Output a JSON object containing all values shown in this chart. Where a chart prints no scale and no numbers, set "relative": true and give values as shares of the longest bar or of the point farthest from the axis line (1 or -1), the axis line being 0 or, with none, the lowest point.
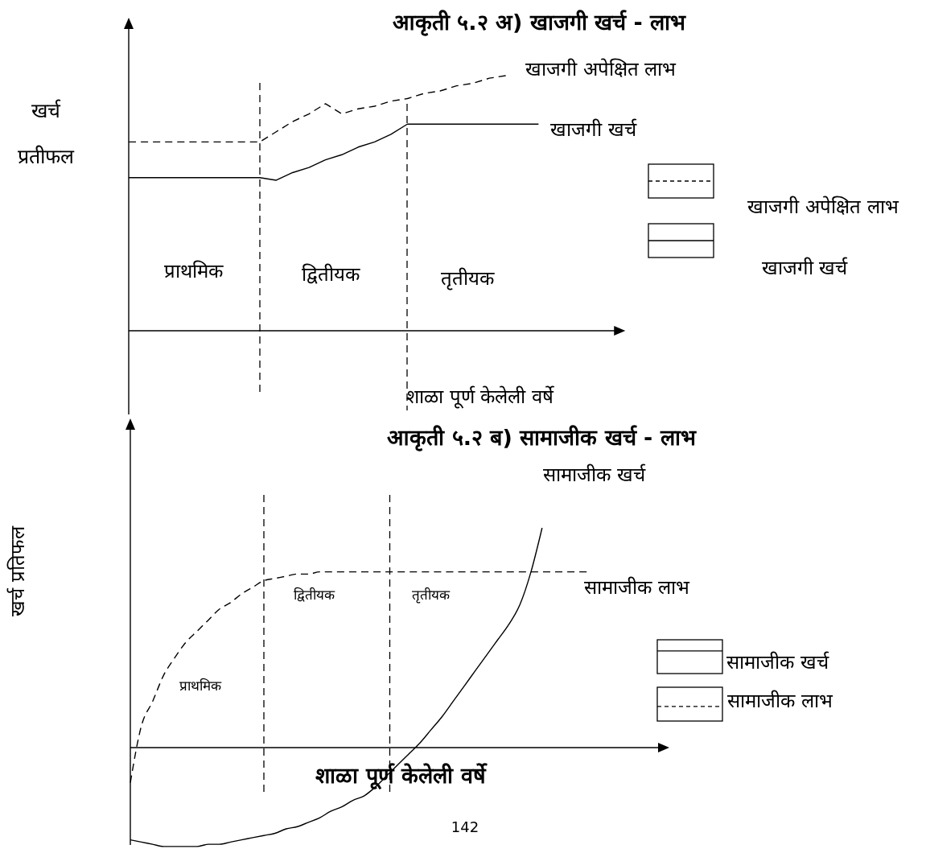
{
  "chart_data": [
    {
      "type": "line",
      "title": "आकृती ५.२ अ) खाजगी खर्च - लाभ",
      "xlabel": "शाळा पूर्ण केलेली वर्षे",
      "ylabel": "खर्च प्रतीफल",
      "relative": true,
      "legend": "right",
      "categories": [
        null,
        null,
        null,
        null,
        null,
        null,
        null,
        null,
        null,
        null,
        null,
        null,
        null,
        null,
        null,
        null,
        null,
        null,
        null,
        null,
        null,
        null,
        null,
        null,
        null,
        null,
        null,
        null,
        null,
        null,
        null
      ],
      "series": [
        {
          "name": "खाजगी अपेक्षित लाभ",
          "color": "#000000",
          "line_style": "dashed",
          "values": [
            0.74,
            0.74,
            0.74,
            0.74,
            0.74,
            0.74,
            0.74,
            0.74,
            0.74,
            0.78,
            0.82,
            0.85,
            0.89,
            0.85,
            0.87,
            0.88,
            0.9,
            0.91,
            0.93,
            0.94,
            0.96,
            0.97,
            0.99,
            1.0,
            null,
            null,
            null,
            null,
            null,
            null,
            null
          ]
        },
        {
          "name": "खाजगी खर्च",
          "color": "#000000",
          "line_style": "solid",
          "values": [
            0.6,
            0.6,
            0.6,
            0.6,
            0.6,
            0.6,
            0.6,
            0.6,
            0.6,
            0.59,
            0.62,
            0.64,
            0.67,
            0.69,
            0.72,
            0.74,
            0.77,
            0.81,
            0.81,
            0.81,
            0.81,
            0.81,
            0.81,
            0.81,
            0.81,
            0.81,
            null,
            null,
            null,
            null,
            null
          ]
        }
      ],
      "annotations": [
        "प्राथमिक",
        "द्वितीयक",
        "तृतीयक"
      ]
    },
    {
      "type": "line",
      "title": "आकृती ५.२ ब) सामाजीक खर्च - लाभ",
      "xlabel": "शाळा पूर्ण केलेली वर्षे",
      "ylabel": "खर्च प्रतिफल",
      "relative": true,
      "legend": "right",
      "categories": [
        null,
        null,
        null,
        null,
        null,
        null,
        null,
        null,
        null,
        null,
        null,
        null,
        null,
        null,
        null,
        null,
        null,
        null,
        null,
        null,
        null,
        null,
        null,
        null,
        null,
        null,
        null,
        null,
        null,
        null,
        null,
        null,
        null,
        null,
        null,
        null,
        null,
        null,
        null,
        null,
        null,
        null,
        null,
        null,
        null,
        null,
        null,
        null,
        null
      ],
      "series": [
        {
          "name": "सामाजीक खर्च",
          "color": "#000000",
          "line_style": "solid",
          "values": [
            -0.42,
            -0.43,
            -0.44,
            -0.45,
            -0.45,
            -0.45,
            -0.45,
            -0.44,
            -0.44,
            -0.43,
            -0.42,
            -0.41,
            -0.4,
            -0.39,
            -0.37,
            -0.36,
            -0.34,
            -0.32,
            -0.29,
            -0.27,
            -0.24,
            -0.22,
            -0.18,
            -0.13,
            -0.08,
            -0.03,
            0.02,
            0.08,
            0.14,
            0.21,
            0.28,
            0.35,
            0.42,
            0.49,
            0.56,
            0.65,
            0.8,
            1.0,
            null,
            null,
            null,
            null,
            null,
            null,
            null,
            null,
            null,
            null,
            null
          ]
        },
        {
          "name": "सामाजीक लाभ",
          "color": "#000000",
          "line_style": "dashed",
          "values": [
            -0.16,
            0.1,
            0.21,
            0.33,
            0.41,
            0.48,
            0.53,
            0.58,
            0.63,
            0.66,
            0.7,
            0.73,
            0.76,
            0.77,
            0.78,
            0.79,
            0.79,
            0.8,
            0.8,
            0.8,
            0.8,
            0.8,
            0.8,
            0.8,
            0.8,
            0.8,
            0.8,
            0.8,
            0.8,
            0.8,
            0.8,
            0.8,
            0.8,
            0.8,
            0.8,
            0.8,
            0.8,
            0.8,
            0.8,
            0.8,
            0.8,
            0.8,
            null,
            null,
            null,
            null,
            null,
            null,
            null
          ]
        }
      ],
      "annotations": [
        "प्राथमिक",
        "द्वितीयक",
        "तृतीयक",
        "142"
      ]
    }
  ]
}
